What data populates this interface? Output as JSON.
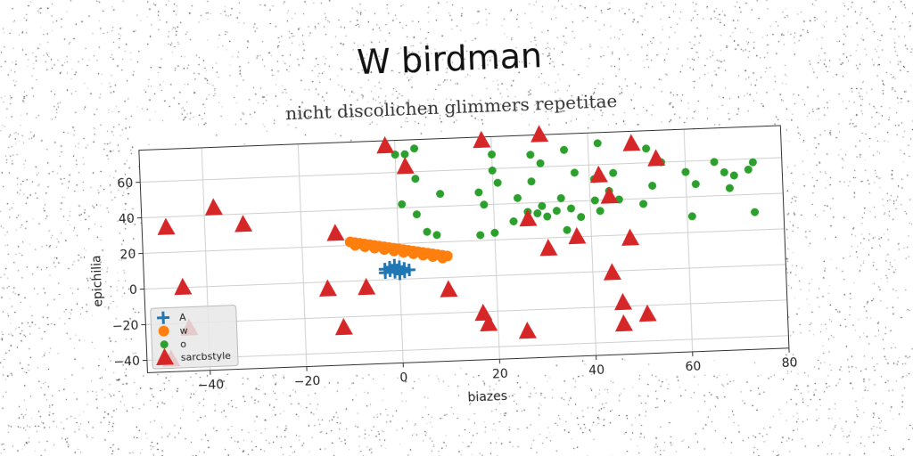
{
  "chart_data": {
    "type": "scatter",
    "title": "W birdman",
    "subtitle": "nicht discolichen glimmers repetitae",
    "xlabel": "biazes",
    "ylabel": "epichilia",
    "xlim": [
      -53,
      80
    ],
    "ylim": [
      -47,
      78
    ],
    "xticks": [
      -40,
      -20,
      0,
      20,
      40,
      60,
      80
    ],
    "yticks": [
      -40,
      -20,
      0,
      20,
      40,
      60
    ],
    "grid": true,
    "legend_position": "lower-left",
    "series": [
      {
        "name": "A",
        "marker": "plus",
        "color": "#1f77b4",
        "points": [
          [
            -3,
            6
          ],
          [
            -2,
            5
          ],
          [
            -1,
            6
          ],
          [
            0,
            5
          ],
          [
            1,
            6
          ],
          [
            -2,
            7
          ],
          [
            0,
            7
          ],
          [
            -1,
            4
          ],
          [
            1,
            4
          ],
          [
            -3,
            4
          ],
          [
            0,
            3
          ],
          [
            2,
            5
          ],
          [
            -1,
            8
          ]
        ]
      },
      {
        "name": "w",
        "marker": "circle",
        "color": "#ff7f0e",
        "points": [
          [
            -10,
            22
          ],
          [
            -9,
            21.5
          ],
          [
            -8,
            21
          ],
          [
            -7,
            20.5
          ],
          [
            -6,
            20
          ],
          [
            -5,
            19.5
          ],
          [
            -4,
            19
          ],
          [
            -3,
            18.5
          ],
          [
            -2,
            18
          ],
          [
            -1,
            17.5
          ],
          [
            0,
            17
          ],
          [
            1,
            16.5
          ],
          [
            2,
            16
          ],
          [
            3,
            15.5
          ],
          [
            4,
            15
          ],
          [
            5,
            14.5
          ],
          [
            6,
            14
          ],
          [
            7,
            13.5
          ],
          [
            8,
            13
          ],
          [
            9,
            12.5
          ],
          [
            10,
            12
          ],
          [
            -9,
            20
          ],
          [
            -7,
            19
          ],
          [
            -5,
            18
          ],
          [
            -3,
            17
          ],
          [
            -1,
            16
          ],
          [
            1,
            15
          ],
          [
            3,
            14
          ],
          [
            5,
            13
          ],
          [
            7,
            12
          ],
          [
            9,
            11
          ]
        ]
      },
      {
        "name": "o",
        "marker": "dot",
        "color": "#2ca02c",
        "points": [
          [
            0,
            70
          ],
          [
            2,
            70
          ],
          [
            4,
            73
          ],
          [
            20,
            68
          ],
          [
            30,
            62
          ],
          [
            28,
            67
          ],
          [
            35,
            69
          ],
          [
            37,
            56
          ],
          [
            42,
            72
          ],
          [
            52,
            68
          ],
          [
            55,
            60
          ],
          [
            4,
            56
          ],
          [
            9,
            47
          ],
          [
            20,
            59
          ],
          [
            21,
            52
          ],
          [
            17,
            47
          ],
          [
            18,
            40
          ],
          [
            25,
            43
          ],
          [
            28,
            52
          ],
          [
            34,
            42
          ],
          [
            36,
            36
          ],
          [
            33,
            35
          ],
          [
            30,
            38
          ],
          [
            29,
            34
          ],
          [
            44,
            45
          ],
          [
            41,
            52
          ],
          [
            45,
            55
          ],
          [
            41,
            40
          ],
          [
            46,
            40
          ],
          [
            42,
            34
          ],
          [
            51,
            37
          ],
          [
            53,
            47
          ],
          [
            60,
            54
          ],
          [
            61,
            29
          ],
          [
            74,
            58
          ],
          [
            68,
            53
          ],
          [
            66,
            59
          ],
          [
            70,
            51
          ],
          [
            69,
            44
          ],
          [
            73,
            54
          ],
          [
            74,
            30
          ],
          [
            62,
            47
          ],
          [
            1,
            42
          ],
          [
            4,
            36
          ],
          [
            6,
            26
          ],
          [
            8,
            24
          ],
          [
            20,
            24
          ],
          [
            17,
            23
          ],
          [
            24,
            30
          ],
          [
            27,
            35
          ],
          [
            35,
            24
          ],
          [
            31,
            32
          ],
          [
            38,
            31
          ]
        ]
      },
      {
        "name": "sarcbstyle",
        "marker": "triangle",
        "color": "#d62728",
        "points": [
          [
            -48,
            34
          ],
          [
            -38,
            44
          ],
          [
            -32,
            34
          ],
          [
            -45,
            0
          ],
          [
            -44,
            -23
          ],
          [
            -48,
            -40
          ],
          [
            -13,
            27
          ],
          [
            -15,
            -4
          ],
          [
            -12,
            -26
          ],
          [
            -7,
            -4
          ],
          [
            -2,
            75
          ],
          [
            2,
            63
          ],
          [
            10,
            -7
          ],
          [
            17,
            -21
          ],
          [
            18,
            -27
          ],
          [
            18,
            76
          ],
          [
            26,
            -32
          ],
          [
            27,
            31
          ],
          [
            30,
            78
          ],
          [
            31,
            14
          ],
          [
            37,
            20
          ],
          [
            42,
            54
          ],
          [
            44,
            -1
          ],
          [
            44,
            42
          ],
          [
            46,
            -18
          ],
          [
            46,
            -30
          ],
          [
            49,
            71
          ],
          [
            51,
            -25
          ],
          [
            54,
            62
          ],
          [
            48,
            18
          ]
        ]
      }
    ]
  }
}
